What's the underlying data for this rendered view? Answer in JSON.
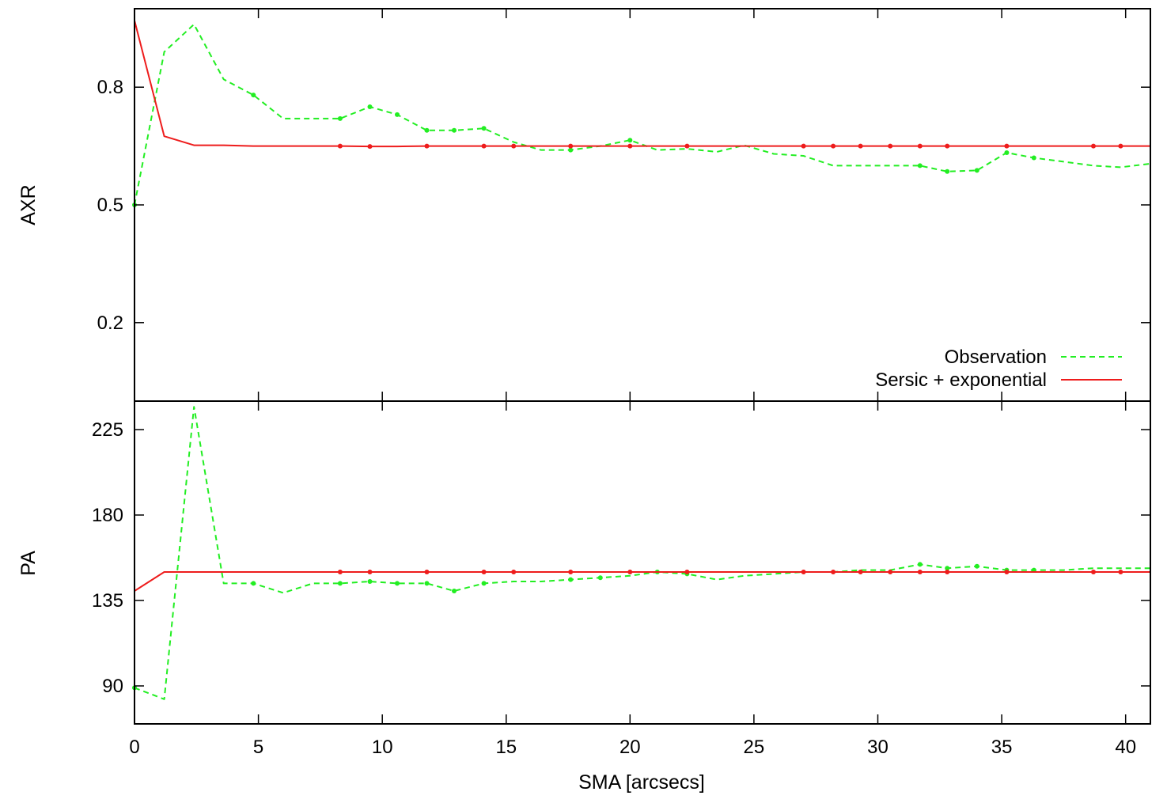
{
  "chart_data": [
    {
      "panel": "top",
      "type": "line",
      "xlabel": "",
      "ylabel": "AXR",
      "xlim": [
        0,
        41
      ],
      "ylim": [
        0.0,
        1.0
      ],
      "yticks": [
        0.2,
        0.5,
        0.8
      ],
      "ytick_labels": [
        "0.2",
        "0.5",
        "0.8"
      ],
      "grid": false,
      "legend_position": "bottom-right",
      "series": [
        {
          "name": "Observation",
          "color": "#22ee22",
          "style": "dashed",
          "x": [
            0,
            1.2,
            2.4,
            3.6,
            4.8,
            6.0,
            7.2,
            8.3,
            9.5,
            10.6,
            11.8,
            12.9,
            14.1,
            15.3,
            16.4,
            17.6,
            18.8,
            20.0,
            21.1,
            22.3,
            23.5,
            24.6,
            25.8,
            27.0,
            28.2,
            29.3,
            30.5,
            31.7,
            32.8,
            34.0,
            35.2,
            36.3,
            37.5,
            38.7,
            39.8,
            41.0
          ],
          "y": [
            0.5,
            0.89,
            0.96,
            0.82,
            0.78,
            0.72,
            0.72,
            0.72,
            0.75,
            0.73,
            0.69,
            0.69,
            0.695,
            0.66,
            0.64,
            0.64,
            0.65,
            0.665,
            0.64,
            0.643,
            0.635,
            0.652,
            0.63,
            0.625,
            0.6,
            0.6,
            0.6,
            0.6,
            0.585,
            0.588,
            0.633,
            0.62,
            0.61,
            0.6,
            0.596,
            0.605
          ],
          "markers_at_x": [
            0,
            4.8,
            8.3,
            9.5,
            10.6,
            11.8,
            12.9,
            14.1,
            17.6,
            20.0,
            31.7,
            32.8,
            34.0,
            35.2,
            36.3
          ]
        },
        {
          "name": "Sersic + exponential",
          "color": "#ee1c1c",
          "style": "solid",
          "x": [
            0,
            1.2,
            2.4,
            3.6,
            4.8,
            6.0,
            7.2,
            8.3,
            9.5,
            10.6,
            11.8,
            12.9,
            14.1,
            15.3,
            16.4,
            17.6,
            18.8,
            20.0,
            21.1,
            22.3,
            23.5,
            24.6,
            25.8,
            27.0,
            28.2,
            29.3,
            30.5,
            31.7,
            32.8,
            34.0,
            35.2,
            36.3,
            37.5,
            38.7,
            39.8,
            41.0
          ],
          "y": [
            0.97,
            0.675,
            0.652,
            0.652,
            0.65,
            0.65,
            0.65,
            0.65,
            0.649,
            0.649,
            0.65,
            0.65,
            0.65,
            0.65,
            0.65,
            0.65,
            0.65,
            0.65,
            0.65,
            0.65,
            0.65,
            0.65,
            0.65,
            0.65,
            0.65,
            0.65,
            0.65,
            0.65,
            0.65,
            0.65,
            0.65,
            0.65,
            0.65,
            0.65,
            0.65,
            0.65
          ],
          "markers_at_x": [
            8.3,
            9.5,
            11.8,
            14.1,
            15.3,
            17.6,
            20.0,
            22.3,
            27.0,
            28.2,
            29.3,
            30.5,
            31.7,
            32.8,
            35.2,
            38.7,
            39.8
          ]
        }
      ]
    },
    {
      "panel": "bottom",
      "type": "line",
      "xlabel": "SMA [arcsecs]",
      "ylabel": "PA",
      "xlim": [
        0,
        41
      ],
      "ylim": [
        70,
        240
      ],
      "xticks": [
        0,
        5,
        10,
        15,
        20,
        25,
        30,
        35,
        40
      ],
      "xtick_labels": [
        "0",
        "5",
        "10",
        "15",
        "20",
        "25",
        "30",
        "35",
        "40"
      ],
      "yticks": [
        90,
        135,
        180,
        225
      ],
      "ytick_labels": [
        "90",
        "135",
        "180",
        "225"
      ],
      "grid": false,
      "series": [
        {
          "name": "Observation",
          "color": "#22ee22",
          "style": "dashed",
          "x": [
            0,
            1.2,
            2.4,
            3.6,
            4.8,
            6.0,
            7.2,
            8.3,
            9.5,
            10.6,
            11.8,
            12.9,
            14.1,
            15.3,
            16.4,
            17.6,
            18.8,
            20.0,
            21.1,
            22.3,
            23.5,
            24.6,
            25.8,
            27.0,
            28.2,
            29.3,
            30.5,
            31.7,
            32.8,
            34.0,
            35.2,
            36.3,
            37.5,
            38.7,
            39.8,
            41.0
          ],
          "y": [
            89,
            83,
            237,
            144,
            144,
            139,
            144,
            144,
            145,
            144,
            144,
            140,
            144,
            145,
            145,
            146,
            147,
            148,
            150,
            149,
            146,
            148,
            149,
            150,
            150,
            151,
            151,
            154,
            152,
            153,
            151,
            151,
            151,
            152,
            152,
            152
          ],
          "markers_at_x": [
            0,
            4.8,
            8.3,
            9.5,
            10.6,
            11.8,
            12.9,
            14.1,
            17.6,
            18.8,
            21.1,
            22.3,
            31.7,
            32.8,
            34.0,
            35.2,
            36.3
          ]
        },
        {
          "name": "Sersic + exponential",
          "color": "#ee1c1c",
          "style": "solid",
          "x": [
            0,
            1.2,
            2.4,
            3.6,
            4.8,
            6.0,
            7.2,
            8.3,
            9.5,
            10.6,
            11.8,
            12.9,
            14.1,
            15.3,
            16.4,
            17.6,
            18.8,
            20.0,
            21.1,
            22.3,
            23.5,
            24.6,
            25.8,
            27.0,
            28.2,
            29.3,
            30.5,
            31.7,
            32.8,
            34.0,
            35.2,
            36.3,
            37.5,
            38.7,
            39.8,
            41.0
          ],
          "y": [
            140,
            150,
            150,
            150,
            150,
            150,
            150,
            150,
            150,
            150,
            150,
            150,
            150,
            150,
            150,
            150,
            150,
            150,
            150,
            150,
            150,
            150,
            150,
            150,
            150,
            150,
            150,
            150,
            150,
            150,
            150,
            150,
            150,
            150,
            150,
            150
          ],
          "markers_at_x": [
            8.3,
            9.5,
            11.8,
            14.1,
            15.3,
            17.6,
            20.0,
            22.3,
            27.0,
            28.2,
            29.3,
            30.5,
            31.7,
            32.8,
            35.2,
            38.7,
            39.8
          ]
        }
      ]
    }
  ]
}
